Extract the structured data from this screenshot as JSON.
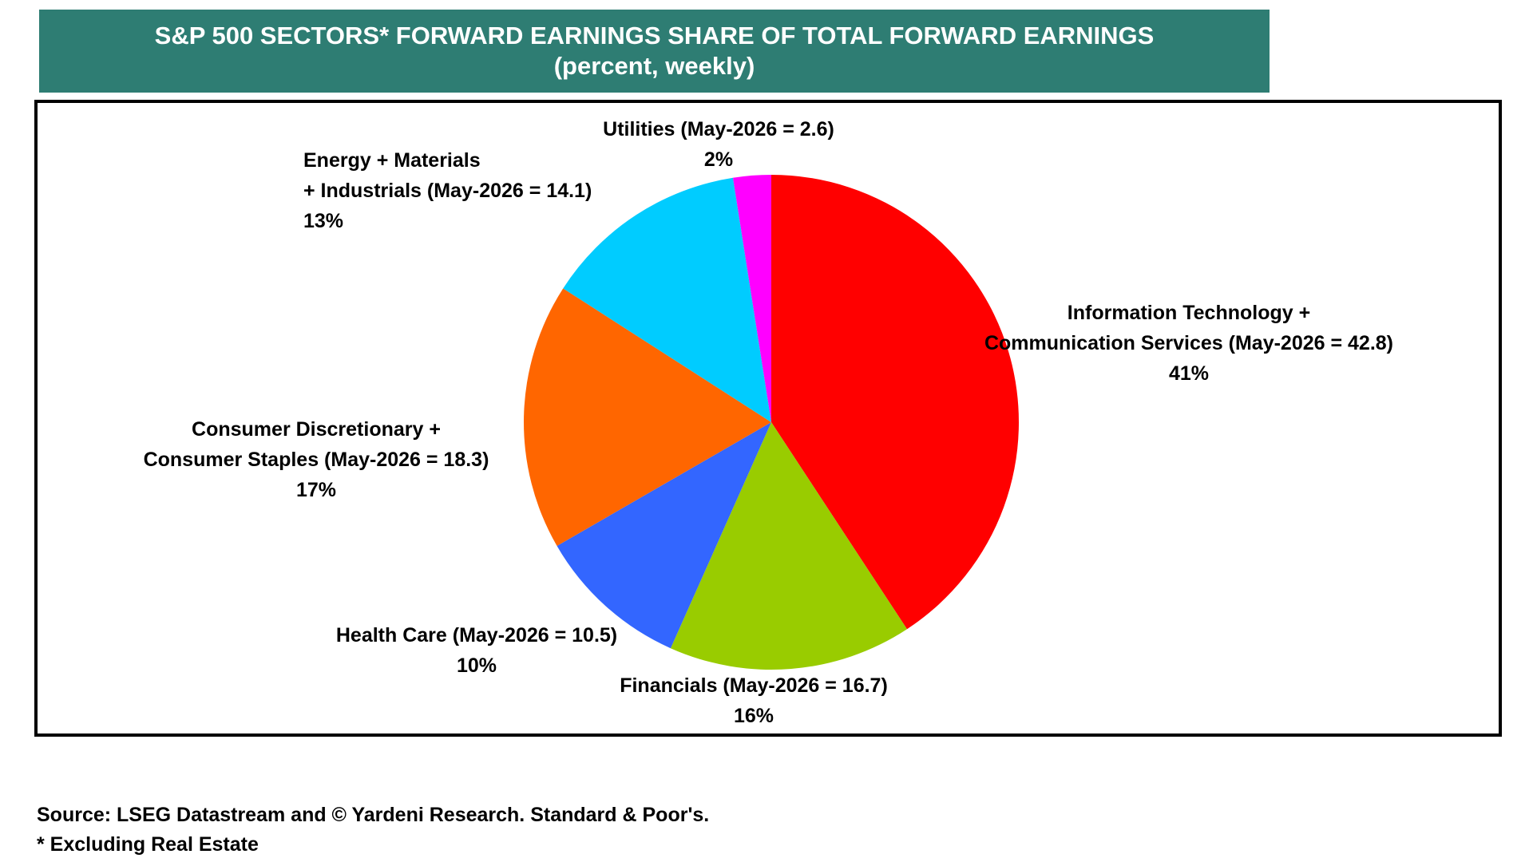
{
  "header": {
    "title": "S&P 500 SECTORS* FORWARD EARNINGS SHARE OF TOTAL FORWARD EARNINGS",
    "subtitle": "(percent, weekly)"
  },
  "chart_data": {
    "type": "pie",
    "title": "S&P 500 SECTORS* FORWARD EARNINGS SHARE OF TOTAL FORWARD EARNINGS",
    "subtitle": "(percent, weekly)",
    "start": "12 o'clock, clockwise",
    "slices": [
      {
        "key": "it",
        "line1": "Information Technology +",
        "line2": "Communication Services (May-2026 = 42.8)",
        "pct_label": "41%",
        "value": 42.8,
        "color": "#ff0000"
      },
      {
        "key": "fin",
        "line1": "Financials (May-2026 = 16.7)",
        "line2": "",
        "pct_label": "16%",
        "value": 16.7,
        "color": "#99cc00"
      },
      {
        "key": "hc",
        "line1": "Health Care (May-2026 = 10.5)",
        "line2": "",
        "pct_label": "10%",
        "value": 10.5,
        "color": "#3366ff"
      },
      {
        "key": "cons",
        "line1": "Consumer Discretionary +",
        "line2": "Consumer Staples (May-2026 = 18.3)",
        "pct_label": "17%",
        "value": 18.3,
        "color": "#ff6600"
      },
      {
        "key": "emi",
        "line1": "Energy + Materials",
        "line2": "+ Industrials (May-2026 = 14.1)",
        "pct_label": "13%",
        "value": 14.1,
        "color": "#00ccff"
      },
      {
        "key": "util",
        "line1": "Utilities (May-2026 = 2.6)",
        "line2": "",
        "pct_label": "2%",
        "value": 2.6,
        "color": "#ff00ff"
      }
    ]
  },
  "footer": {
    "source": "Source: LSEG Datastream and © Yardeni Research. Standard & Poor's.",
    "note": "* Excluding Real Estate"
  }
}
